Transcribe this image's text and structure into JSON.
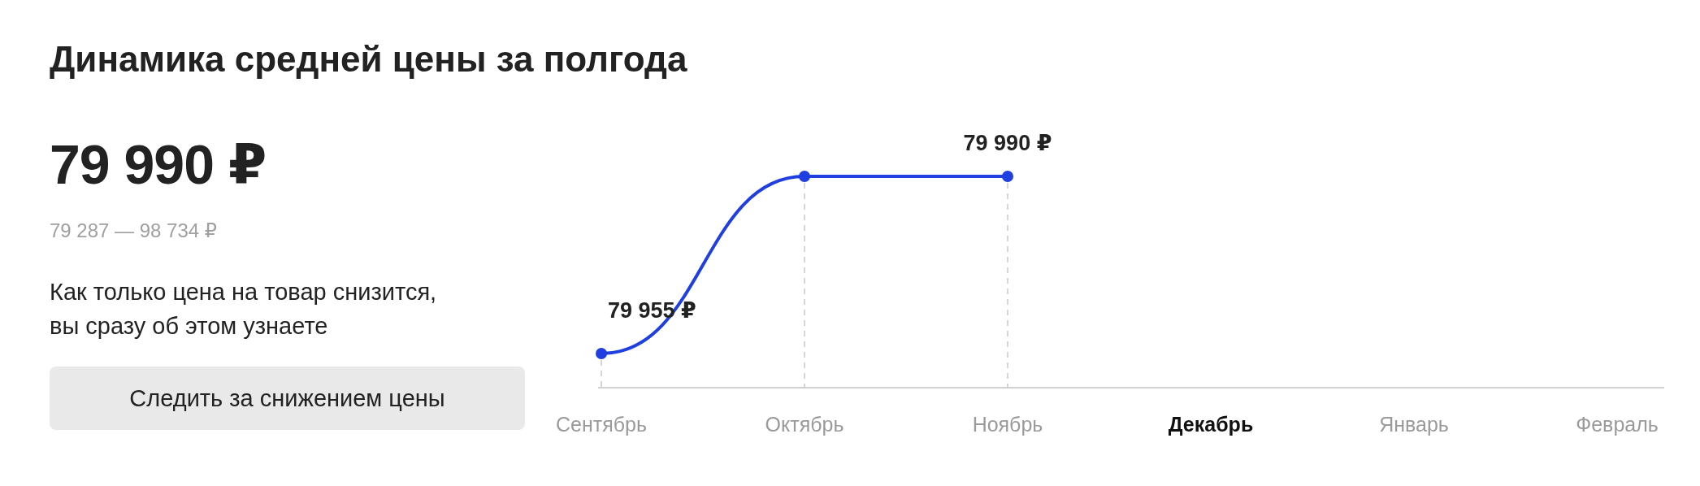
{
  "chart_data": {
    "type": "line",
    "title": "Динамика средней цены за полгода",
    "categories": [
      "Сентябрь",
      "Октябрь",
      "Ноябрь",
      "Декабрь",
      "Январь",
      "Февраль"
    ],
    "series": [
      {
        "color": "#1f3fe0",
        "values": [
          79955,
          79990,
          79990,
          null,
          null,
          null
        ],
        "value_labels": [
          "79 955 ₽",
          null,
          "79 990 ₽",
          null,
          null,
          null
        ]
      }
    ],
    "marker": "circle",
    "annotations": [
      "79 990 ₽",
      "79 287 — 98 734 ₽",
      "Как только цена на товар снизится, вы сразу об этом узнаете",
      "Следить за снижением цены"
    ]
  }
}
